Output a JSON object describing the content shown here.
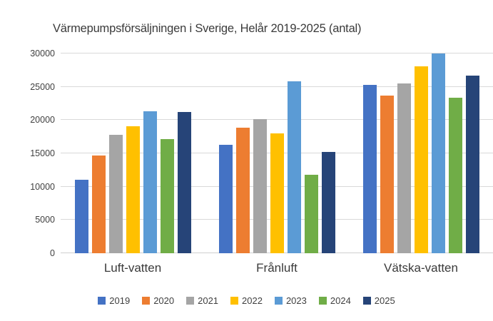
{
  "title": "Värmepumpsförsäljningen i Sverige, Helår 2019-2025 (antal)",
  "chart_data": {
    "type": "bar",
    "title": "Värmepumpsförsäljningen i Sverige, Helår 2019-2025 (antal)",
    "categories": [
      "Luft-vatten",
      "Frånluft",
      "Vätska-vatten"
    ],
    "series": [
      {
        "name": "2019",
        "color": "#4472C4",
        "values": [
          11000,
          16300,
          25300
        ]
      },
      {
        "name": "2020",
        "color": "#ED7D31",
        "values": [
          14700,
          18900,
          23700
        ]
      },
      {
        "name": "2021",
        "color": "#A5A5A5",
        "values": [
          17800,
          20100,
          25500
        ]
      },
      {
        "name": "2022",
        "color": "#FFC000",
        "values": [
          19100,
          18000,
          28100
        ]
      },
      {
        "name": "2023",
        "color": "#5B9BD5",
        "values": [
          21300,
          25800,
          30000
        ]
      },
      {
        "name": "2024",
        "color": "#70AD47",
        "values": [
          17100,
          11800,
          23400
        ]
      },
      {
        "name": "2025",
        "color": "#264478",
        "values": [
          21200,
          15200,
          26700
        ]
      }
    ],
    "xlabel": "",
    "ylabel": "",
    "ylim": [
      0,
      30000
    ],
    "yticks": [
      0,
      5000,
      10000,
      15000,
      20000,
      25000,
      30000
    ],
    "grid": "horizontal",
    "legend_position": "bottom",
    "gridline_color": "#D9D9D9",
    "text_color": "#404040",
    "background_color": "#FFFFFF"
  }
}
